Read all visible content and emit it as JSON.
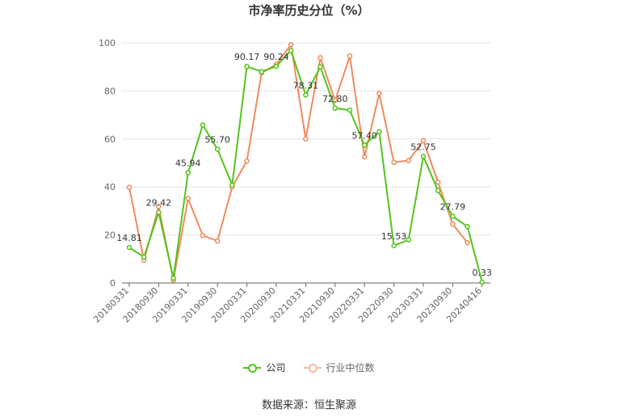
{
  "chart_data": {
    "type": "line",
    "title": "市净率历史分位（%）",
    "ylim": [
      0,
      100
    ],
    "yticks": [
      "0",
      "20",
      "40",
      "60",
      "80",
      "100"
    ],
    "x_tick_labels": [
      "20180331",
      "20180930",
      "20190331",
      "20190930",
      "20200331",
      "20200930",
      "20210331",
      "20210930",
      "20220331",
      "20220930",
      "20230331",
      "20230930",
      "20240416"
    ],
    "grid": true,
    "legend_position": "bottom",
    "series": [
      {
        "name": "公司",
        "color": "#52c41a",
        "values": [
          14.81,
          10.8,
          29.42,
          2.0,
          45.94,
          65.8,
          55.7,
          40.8,
          90.17,
          88.0,
          90.24,
          96.8,
          78.31,
          90.0,
          72.8,
          72.0,
          57.4,
          63.0,
          15.53,
          18.0,
          52.75,
          38.5,
          27.79,
          23.5,
          0.33
        ],
        "labels": [
          "14.81",
          "",
          "29.42",
          "",
          "45.94",
          "",
          "55.70",
          "",
          "90.17",
          "",
          "90.24",
          "",
          "78.31",
          "",
          "72.80",
          "",
          "57.40",
          "",
          "15.53",
          "",
          "52.75",
          "",
          "27.79",
          "",
          "0.33"
        ]
      },
      {
        "name": "行业中位数",
        "color": "#f08a5d",
        "values": [
          39.8,
          9.5,
          31.8,
          1.2,
          35.2,
          19.8,
          17.5,
          40.0,
          50.8,
          87.5,
          91.0,
          99.3,
          60.0,
          93.8,
          76.0,
          94.5,
          52.5,
          79.0,
          50.2,
          51.0,
          59.3,
          42.0,
          24.5,
          16.8
        ]
      }
    ]
  },
  "legend": {
    "company": "公司",
    "industry": "行业中位数"
  },
  "source": "数据来源：恒生聚源"
}
